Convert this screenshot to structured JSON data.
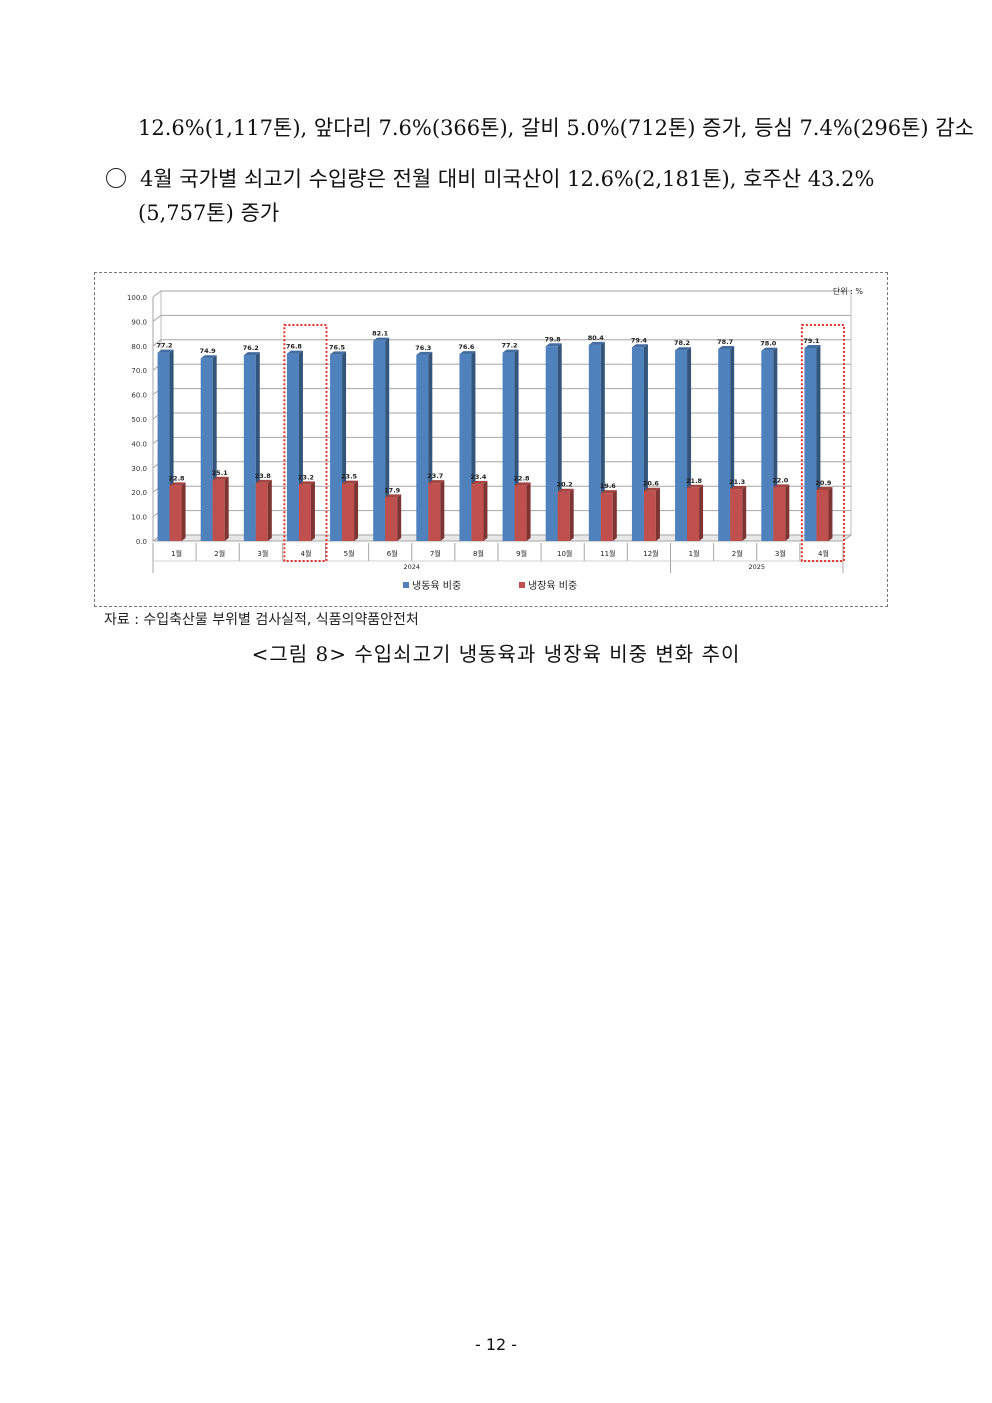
{
  "paragraphs": {
    "p1": "12.6%(1,117톤), 앞다리 7.6%(366톤), 갈비 5.0%(712톤) 증가, 등심 7.4%(296톤) 감소",
    "p2_line1": "4월 국가별 쇠고기 수입량은 전월 대비 미국산이 12.6%(2,181톤), 호주산 43.2%",
    "p2_line2": "(5,757톤) 증가"
  },
  "figure": {
    "source": "자료 : 수입축산물 부위별 검사실적, 식품의약품안전처",
    "caption": "<그림 8> 수입쇠고기 냉동육과 냉장육 비중 변화 추이"
  },
  "page_number": "- 12 -",
  "chart_data": {
    "type": "bar",
    "unit_label": "단위 : %",
    "categories": [
      "1월",
      "2월",
      "3월",
      "4월",
      "5월",
      "6월",
      "7월",
      "8월",
      "9월",
      "10월",
      "11월",
      "12월",
      "1월",
      "2월",
      "3월",
      "4월"
    ],
    "year_groups": [
      {
        "label": "2024",
        "count": 12
      },
      {
        "label": "2025",
        "count": 4
      }
    ],
    "ylim": [
      0,
      100
    ],
    "yticks": [
      "0.0",
      "10.0",
      "20.0",
      "30.0",
      "40.0",
      "50.0",
      "60.0",
      "70.0",
      "80.0",
      "90.0",
      "100.0"
    ],
    "series": [
      {
        "name": "냉동육 비중",
        "color": "#4f81bd",
        "values": [
          77.2,
          74.9,
          76.2,
          76.8,
          76.5,
          82.1,
          76.3,
          76.6,
          77.2,
          79.8,
          80.4,
          79.4,
          78.2,
          78.7,
          78.0,
          79.1
        ]
      },
      {
        "name": "냉장육 비중",
        "color": "#c0504d",
        "values": [
          22.8,
          25.1,
          23.8,
          23.2,
          23.5,
          17.9,
          23.7,
          23.4,
          22.8,
          20.2,
          19.6,
          20.6,
          21.8,
          21.3,
          22.0,
          20.9
        ]
      }
    ],
    "highlighted": [
      "2024-4월",
      "2025-4월"
    ],
    "grid": true,
    "legend": "bottom"
  }
}
